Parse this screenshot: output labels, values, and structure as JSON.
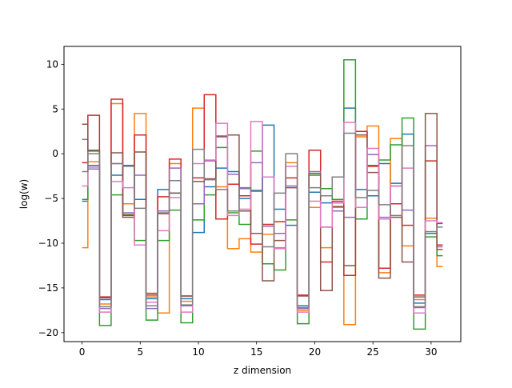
{
  "chart_data": {
    "type": "line",
    "drawstyle": "steps-mid",
    "xlabel": "z dimension",
    "ylabel": "log(w)",
    "xlim": [
      -1.55,
      32.55
    ],
    "ylim": [
      -21.0,
      12.0
    ],
    "xticks": [
      0,
      5,
      10,
      15,
      20,
      25,
      30
    ],
    "yticks": [
      -20,
      -15,
      -10,
      -5,
      0,
      5,
      10
    ],
    "grid": false,
    "legend": "none",
    "x": [
      0,
      1,
      2,
      3,
      4,
      5,
      6,
      7,
      8,
      9,
      10,
      11,
      12,
      13,
      14,
      15,
      16,
      17,
      18,
      19,
      20,
      21,
      22,
      23,
      24,
      25,
      26,
      27,
      28,
      29,
      30,
      31
    ],
    "series": [
      {
        "color": "#1f77b4",
        "values": [
          -5.3,
          -1.3,
          -16.3,
          -2.4,
          -1.3,
          -5.1,
          -16.2,
          -4.0,
          -4.4,
          -16.2,
          -8.8,
          -3.7,
          -1.6,
          -2.0,
          -5.0,
          -4.1,
          3.2,
          -6.2,
          -8.0,
          -17.0,
          -4.3,
          -5.5,
          -5.5,
          5.1,
          -4.0,
          -4.7,
          -1.1,
          -3.3,
          2.2,
          -16.7,
          -8.9,
          -7.8
        ]
      },
      {
        "color": "#ff7f0e",
        "values": [
          -10.5,
          -0.9,
          -16.8,
          5.6,
          -5.6,
          4.5,
          -16.0,
          -17.8,
          -1.1,
          -16.5,
          5.1,
          -2.9,
          -3.7,
          -10.6,
          -9.5,
          -11.0,
          -9.0,
          -10.5,
          -1.0,
          -17.5,
          -6.0,
          -10.5,
          -6.0,
          -19.1,
          1.9,
          3.1,
          -13.3,
          1.7,
          -10.3,
          -16.3,
          -7.2,
          -12.6
        ]
      },
      {
        "color": "#2ca02c",
        "values": [
          -5.1,
          0.3,
          -19.2,
          -4.6,
          -6.8,
          -9.7,
          -18.6,
          -9.7,
          -6.3,
          -18.9,
          -7.4,
          -4.6,
          0.7,
          -6.6,
          -7.9,
          0.3,
          -12.3,
          -13.0,
          -7.4,
          -19.0,
          -2.4,
          -3.9,
          -5.1,
          10.5,
          -7.3,
          -1.3,
          -0.7,
          1.0,
          4.0,
          -19.6,
          -9.3,
          -11.4
        ]
      },
      {
        "color": "#d62728",
        "values": [
          -1.0,
          4.3,
          -16.0,
          6.1,
          -6.9,
          2.1,
          -15.6,
          -4.8,
          -0.6,
          -15.9,
          -2.7,
          6.6,
          -7.3,
          -3.4,
          -4.7,
          -10.1,
          -7.9,
          -7.6,
          -2.7,
          -15.8,
          0.4,
          -12.1,
          -5.3,
          -13.6,
          2.5,
          -1.4,
          -12.8,
          -5.6,
          -8.0,
          -15.8,
          -0.8,
          -10.2
        ]
      },
      {
        "color": "#9467bd",
        "values": [
          1.6,
          -1.7,
          -17.3,
          -1.1,
          -6.6,
          -2.4,
          -17.3,
          -6.4,
          -1.6,
          -17.0,
          -5.6,
          -0.8,
          2.0,
          -2.3,
          -3.9,
          -1.0,
          -8.1,
          -8.9,
          -3.6,
          -17.3,
          -2.0,
          -8.2,
          -6.4,
          -7.1,
          -6.0,
          -0.1,
          -7.1,
          -3.6,
          -6.3,
          -17.2,
          0.9,
          -10.4
        ]
      },
      {
        "color": "#8c564b",
        "values": [
          3.3,
          0.4,
          -16.1,
          0.1,
          -7.1,
          0.2,
          -15.8,
          -6.7,
          -4.4,
          -15.9,
          -3.1,
          -2.8,
          1.9,
          2.1,
          -6.4,
          -8.9,
          -14.2,
          -9.7,
          -3.8,
          -15.9,
          -2.2,
          -15.3,
          -5.9,
          -12.5,
          2.1,
          -2.1,
          -13.9,
          -7.1,
          -12.1,
          -16.0,
          4.5,
          -10.7
        ]
      },
      {
        "color": "#e377c2",
        "values": [
          -3.6,
          -1.5,
          -17.7,
          -3.1,
          -3.8,
          -10.2,
          -16.6,
          -8.6,
          -4.9,
          -17.7,
          -1.1,
          -0.7,
          3.4,
          -6.9,
          -6.2,
          3.6,
          -2.6,
          -10.6,
          -1.4,
          -17.7,
          -5.3,
          -8.2,
          -5.5,
          3.5,
          -6.0,
          0.6,
          -7.3,
          -3.6,
          -1.6,
          -17.8,
          -7.5,
          -7.7
        ]
      },
      {
        "color": "#7f7f7f",
        "values": [
          -2.0,
          0.0,
          -17.1,
          -1.1,
          -1.4,
          -6.1,
          -17.0,
          -6.6,
          -3.0,
          -16.9,
          0.5,
          -2.9,
          -4.0,
          -6.4,
          -3.8,
          -4.2,
          -10.4,
          -4.4,
          0.0,
          -17.2,
          -3.8,
          -4.7,
          -2.6,
          2.3,
          -4.9,
          -4.1,
          -5.7,
          -6.9,
          0.9,
          -17.1,
          -8.7,
          -8.2
        ]
      }
    ]
  }
}
